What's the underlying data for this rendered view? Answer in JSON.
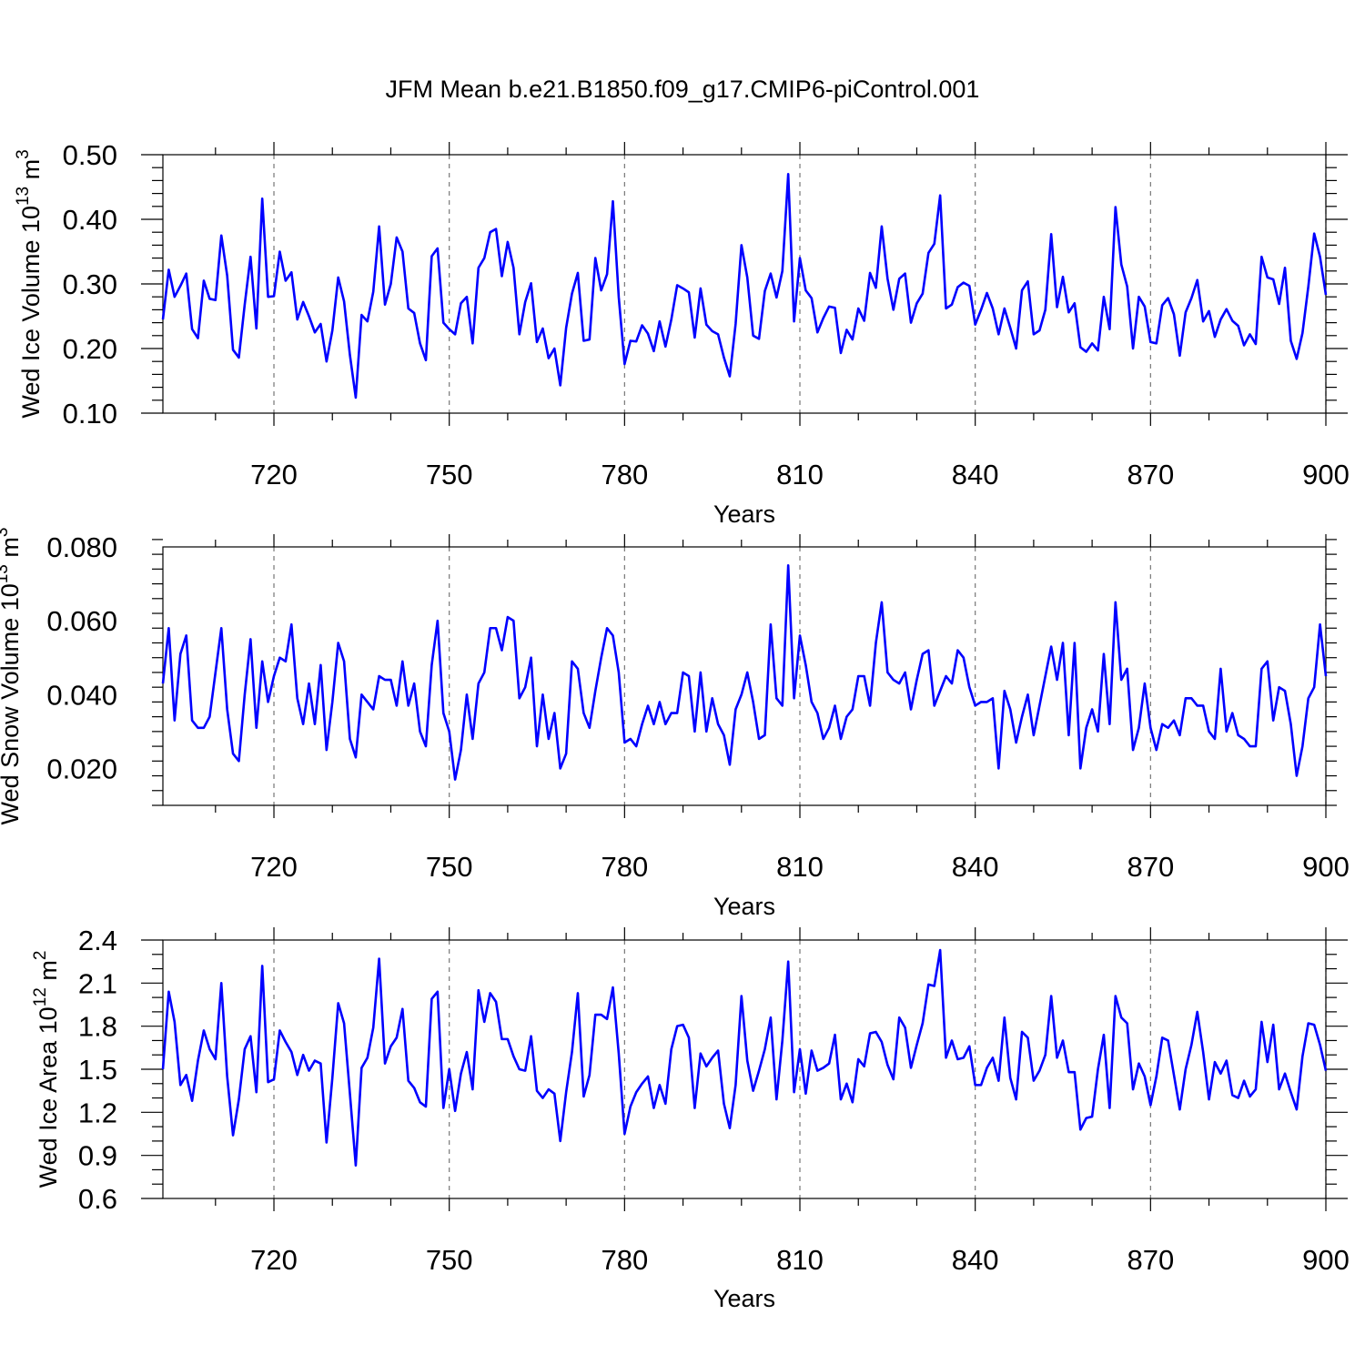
{
  "figure_title": "JFM Mean b.e21.B1850.f09_g17.CMIP6-piControl.001",
  "colors": {
    "line": "#0000ff",
    "grid": "#777777",
    "axis": "#000000"
  },
  "chart_data": [
    {
      "type": "line",
      "title": "JFM Mean b.e21.B1850.f09_g17.CMIP6-piControl.001",
      "ylabel_main": "Wed Ice Volume 10",
      "ylabel_exp": "13",
      "ylabel_unit": " m",
      "ylabel_unit_exp": "3",
      "xlabel": "Years",
      "xlim": [
        701,
        900
      ],
      "ylim": [
        0.1,
        0.5
      ],
      "xticks": [
        720,
        750,
        780,
        810,
        840,
        870,
        900
      ],
      "xtick_labels": [
        "720",
        "750",
        "780",
        "810",
        "840",
        "870",
        "900"
      ],
      "yticks": [
        0.1,
        0.2,
        0.3,
        0.4,
        0.5
      ],
      "ytick_labels": [
        "0.10",
        "0.20",
        "0.30",
        "0.40",
        "0.50"
      ],
      "y_minor_step": 0.02,
      "grid": "vertical-dashed",
      "series": [
        {
          "name": "Wed Ice Volume",
          "x_start": 701,
          "values": [
            0.245,
            0.322,
            0.28,
            0.297,
            0.316,
            0.23,
            0.216,
            0.305,
            0.277,
            0.275,
            0.375,
            0.313,
            0.198,
            0.186,
            0.268,
            0.342,
            0.231,
            0.432,
            0.28,
            0.281,
            0.35,
            0.305,
            0.318,
            0.245,
            0.272,
            0.25,
            0.225,
            0.238,
            0.18,
            0.228,
            0.31,
            0.273,
            0.19,
            0.124,
            0.252,
            0.242,
            0.288,
            0.389,
            0.268,
            0.3,
            0.372,
            0.35,
            0.262,
            0.255,
            0.208,
            0.182,
            0.343,
            0.355,
            0.24,
            0.23,
            0.222,
            0.27,
            0.28,
            0.208,
            0.325,
            0.34,
            0.38,
            0.385,
            0.312,
            0.365,
            0.325,
            0.222,
            0.272,
            0.301,
            0.21,
            0.231,
            0.185,
            0.2,
            0.143,
            0.232,
            0.285,
            0.317,
            0.212,
            0.214,
            0.34,
            0.29,
            0.315,
            0.428,
            0.28,
            0.176,
            0.212,
            0.211,
            0.236,
            0.223,
            0.196,
            0.242,
            0.203,
            0.245,
            0.298,
            0.293,
            0.287,
            0.217,
            0.293,
            0.237,
            0.227,
            0.222,
            0.186,
            0.157,
            0.238,
            0.36,
            0.31,
            0.22,
            0.215,
            0.289,
            0.316,
            0.279,
            0.32,
            0.47,
            0.242,
            0.34,
            0.29,
            0.278,
            0.225,
            0.247,
            0.265,
            0.263,
            0.193,
            0.229,
            0.214,
            0.262,
            0.243,
            0.317,
            0.294,
            0.389,
            0.308,
            0.26,
            0.308,
            0.316,
            0.24,
            0.27,
            0.285,
            0.348,
            0.362,
            0.437,
            0.262,
            0.268,
            0.295,
            0.302,
            0.297,
            0.237,
            0.26,
            0.286,
            0.262,
            0.222,
            0.262,
            0.232,
            0.2,
            0.29,
            0.304,
            0.222,
            0.228,
            0.26,
            0.377,
            0.264,
            0.311,
            0.256,
            0.27,
            0.202,
            0.195,
            0.208,
            0.197,
            0.28,
            0.23,
            0.419,
            0.33,
            0.296,
            0.2,
            0.28,
            0.265,
            0.21,
            0.208,
            0.267,
            0.278,
            0.253,
            0.189,
            0.256,
            0.278,
            0.306,
            0.242,
            0.258,
            0.218,
            0.245,
            0.261,
            0.243,
            0.235,
            0.205,
            0.222,
            0.207,
            0.342,
            0.31,
            0.307,
            0.269,
            0.325,
            0.212,
            0.184,
            0.224,
            0.296,
            0.378,
            0.342,
            0.283
          ]
        }
      ]
    },
    {
      "type": "line",
      "ylabel_main": "Wed Snow Volume 10",
      "ylabel_exp": "13",
      "ylabel_unit": " m",
      "ylabel_unit_exp": "3",
      "xlabel": "Years",
      "xlim": [
        701,
        900
      ],
      "ylim": [
        0.01,
        0.08
      ],
      "xticks": [
        720,
        750,
        780,
        810,
        840,
        870,
        900
      ],
      "xtick_labels": [
        "720",
        "750",
        "780",
        "810",
        "840",
        "870",
        "900"
      ],
      "yticks": [
        0.02,
        0.04,
        0.06,
        0.08
      ],
      "ytick_labels": [
        "0.020",
        "0.040",
        "0.060",
        "0.080"
      ],
      "y_minor_step": 0.004,
      "grid": "vertical-dashed",
      "series": [
        {
          "name": "Wed Snow Volume",
          "x_start": 701,
          "values": [
            0.043,
            0.058,
            0.033,
            0.051,
            0.056,
            0.033,
            0.031,
            0.031,
            0.034,
            0.046,
            0.058,
            0.036,
            0.024,
            0.022,
            0.04,
            0.055,
            0.031,
            0.049,
            0.038,
            0.045,
            0.05,
            0.049,
            0.059,
            0.039,
            0.032,
            0.043,
            0.032,
            0.048,
            0.025,
            0.038,
            0.054,
            0.049,
            0.028,
            0.023,
            0.04,
            0.038,
            0.036,
            0.045,
            0.044,
            0.044,
            0.037,
            0.049,
            0.037,
            0.043,
            0.03,
            0.026,
            0.048,
            0.06,
            0.035,
            0.03,
            0.017,
            0.025,
            0.04,
            0.028,
            0.043,
            0.046,
            0.058,
            0.058,
            0.052,
            0.061,
            0.06,
            0.039,
            0.042,
            0.05,
            0.026,
            0.04,
            0.028,
            0.035,
            0.02,
            0.024,
            0.049,
            0.047,
            0.035,
            0.031,
            0.041,
            0.05,
            0.058,
            0.056,
            0.046,
            0.027,
            0.028,
            0.026,
            0.032,
            0.037,
            0.032,
            0.038,
            0.032,
            0.035,
            0.035,
            0.046,
            0.045,
            0.03,
            0.046,
            0.03,
            0.039,
            0.032,
            0.029,
            0.021,
            0.036,
            0.04,
            0.046,
            0.038,
            0.028,
            0.029,
            0.059,
            0.039,
            0.037,
            0.075,
            0.039,
            0.056,
            0.048,
            0.038,
            0.035,
            0.028,
            0.031,
            0.037,
            0.028,
            0.034,
            0.036,
            0.045,
            0.045,
            0.037,
            0.054,
            0.065,
            0.046,
            0.044,
            0.043,
            0.046,
            0.036,
            0.044,
            0.051,
            0.052,
            0.037,
            0.041,
            0.045,
            0.043,
            0.052,
            0.05,
            0.042,
            0.037,
            0.038,
            0.038,
            0.039,
            0.02,
            0.041,
            0.036,
            0.027,
            0.034,
            0.04,
            0.029,
            0.037,
            0.045,
            0.053,
            0.044,
            0.054,
            0.029,
            0.054,
            0.02,
            0.031,
            0.036,
            0.03,
            0.051,
            0.032,
            0.065,
            0.044,
            0.047,
            0.025,
            0.031,
            0.043,
            0.031,
            0.025,
            0.032,
            0.031,
            0.033,
            0.029,
            0.039,
            0.039,
            0.037,
            0.037,
            0.03,
            0.028,
            0.047,
            0.03,
            0.035,
            0.029,
            0.028,
            0.026,
            0.026,
            0.047,
            0.049,
            0.033,
            0.042,
            0.041,
            0.032,
            0.018,
            0.026,
            0.039,
            0.042,
            0.059,
            0.045
          ]
        }
      ]
    },
    {
      "type": "line",
      "ylabel_main": "Wed Ice Area 10",
      "ylabel_exp": "12",
      "ylabel_unit": " m",
      "ylabel_unit_exp": "2",
      "xlabel": "Years",
      "xlim": [
        701,
        900
      ],
      "ylim": [
        0.6,
        2.4
      ],
      "xticks": [
        720,
        750,
        780,
        810,
        840,
        870,
        900
      ],
      "xtick_labels": [
        "720",
        "750",
        "780",
        "810",
        "840",
        "870",
        "900"
      ],
      "yticks": [
        0.6,
        0.9,
        1.2,
        1.5,
        1.8,
        2.1,
        2.4
      ],
      "ytick_labels": [
        "0.6",
        "0.9",
        "1.2",
        "1.5",
        "1.8",
        "2.1",
        "2.4"
      ],
      "y_minor_step": 0.1,
      "grid": "vertical-dashed",
      "series": [
        {
          "name": "Wed Ice Area",
          "x_start": 701,
          "values": [
            1.5,
            2.04,
            1.83,
            1.39,
            1.46,
            1.28,
            1.56,
            1.77,
            1.64,
            1.57,
            2.1,
            1.45,
            1.04,
            1.29,
            1.64,
            1.73,
            1.34,
            2.22,
            1.41,
            1.43,
            1.77,
            1.69,
            1.62,
            1.46,
            1.6,
            1.49,
            1.56,
            1.54,
            0.99,
            1.44,
            1.96,
            1.82,
            1.33,
            0.83,
            1.51,
            1.58,
            1.79,
            2.27,
            1.54,
            1.66,
            1.72,
            1.92,
            1.42,
            1.37,
            1.27,
            1.24,
            1.99,
            2.04,
            1.23,
            1.5,
            1.21,
            1.47,
            1.62,
            1.36,
            2.05,
            1.83,
            2.03,
            1.97,
            1.71,
            1.71,
            1.59,
            1.5,
            1.49,
            1.73,
            1.35,
            1.3,
            1.36,
            1.33,
            1.0,
            1.34,
            1.62,
            2.03,
            1.31,
            1.46,
            1.88,
            1.88,
            1.85,
            2.07,
            1.61,
            1.05,
            1.24,
            1.34,
            1.4,
            1.45,
            1.23,
            1.39,
            1.26,
            1.64,
            1.8,
            1.81,
            1.72,
            1.23,
            1.61,
            1.52,
            1.58,
            1.63,
            1.26,
            1.09,
            1.39,
            2.01,
            1.56,
            1.35,
            1.49,
            1.64,
            1.86,
            1.29,
            1.7,
            2.25,
            1.34,
            1.64,
            1.33,
            1.63,
            1.49,
            1.51,
            1.54,
            1.74,
            1.29,
            1.4,
            1.27,
            1.57,
            1.52,
            1.75,
            1.76,
            1.69,
            1.53,
            1.43,
            1.86,
            1.79,
            1.51,
            1.67,
            1.82,
            2.09,
            2.08,
            2.33,
            1.58,
            1.7,
            1.57,
            1.58,
            1.66,
            1.39,
            1.39,
            1.51,
            1.58,
            1.42,
            1.86,
            1.44,
            1.29,
            1.76,
            1.72,
            1.42,
            1.49,
            1.6,
            2.01,
            1.58,
            1.7,
            1.48,
            1.48,
            1.08,
            1.16,
            1.17,
            1.5,
            1.74,
            1.23,
            2.01,
            1.86,
            1.82,
            1.36,
            1.54,
            1.45,
            1.25,
            1.45,
            1.72,
            1.7,
            1.46,
            1.22,
            1.5,
            1.67,
            1.9,
            1.62,
            1.29,
            1.55,
            1.47,
            1.56,
            1.32,
            1.3,
            1.42,
            1.31,
            1.36,
            1.83,
            1.55,
            1.81,
            1.36,
            1.47,
            1.34,
            1.22,
            1.59,
            1.82,
            1.81,
            1.67,
            1.49
          ]
        }
      ]
    }
  ]
}
